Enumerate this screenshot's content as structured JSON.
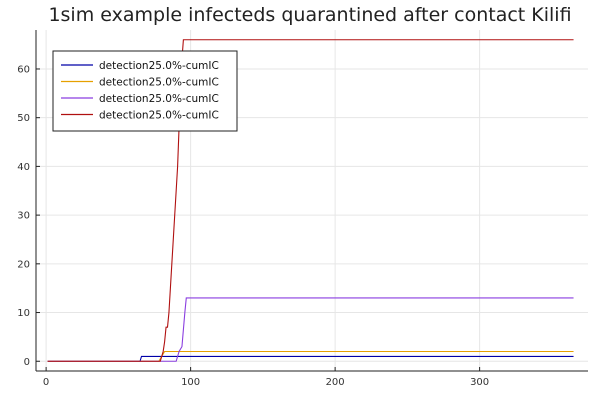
{
  "chart_data": {
    "type": "line",
    "title": "1sim example infecteds quarantined after contact Kilifi",
    "xlabel": "",
    "ylabel": "",
    "xlim": [
      -7,
      375
    ],
    "ylim": [
      -2,
      68
    ],
    "x_ticks": [
      0,
      100,
      200,
      300
    ],
    "y_ticks": [
      0,
      10,
      20,
      30,
      40,
      50,
      60
    ],
    "grid": true,
    "legend_position": "top-left",
    "series": [
      {
        "name": "detection25.0%-cumIC",
        "color": "#0000a8",
        "points": [
          [
            1,
            0
          ],
          [
            65,
            0
          ],
          [
            66,
            1
          ],
          [
            365,
            1
          ]
        ]
      },
      {
        "name": "detection25.0%-cumIC",
        "color": "#e6a000",
        "points": [
          [
            1,
            0
          ],
          [
            78,
            0
          ],
          [
            80,
            1
          ],
          [
            82,
            2
          ],
          [
            365,
            2
          ]
        ]
      },
      {
        "name": "detection25.0%-cumIC",
        "color": "#8a3ee0",
        "points": [
          [
            1,
            0
          ],
          [
            90,
            0
          ],
          [
            91,
            1
          ],
          [
            92,
            2
          ],
          [
            94,
            3
          ],
          [
            96,
            10
          ],
          [
            97,
            13
          ],
          [
            365,
            13
          ]
        ]
      },
      {
        "name": "detection25.0%-cumIC",
        "color": "#b01010",
        "points": [
          [
            1,
            0
          ],
          [
            79,
            0
          ],
          [
            81,
            2
          ],
          [
            82,
            4
          ],
          [
            83,
            7
          ],
          [
            84,
            7
          ],
          [
            85,
            10
          ],
          [
            86,
            15
          ],
          [
            87,
            20
          ],
          [
            88,
            25
          ],
          [
            89,
            30
          ],
          [
            90,
            35
          ],
          [
            91,
            40
          ],
          [
            92,
            48
          ],
          [
            93,
            56
          ],
          [
            94,
            62
          ],
          [
            95,
            66
          ],
          [
            365,
            66
          ]
        ]
      }
    ]
  }
}
